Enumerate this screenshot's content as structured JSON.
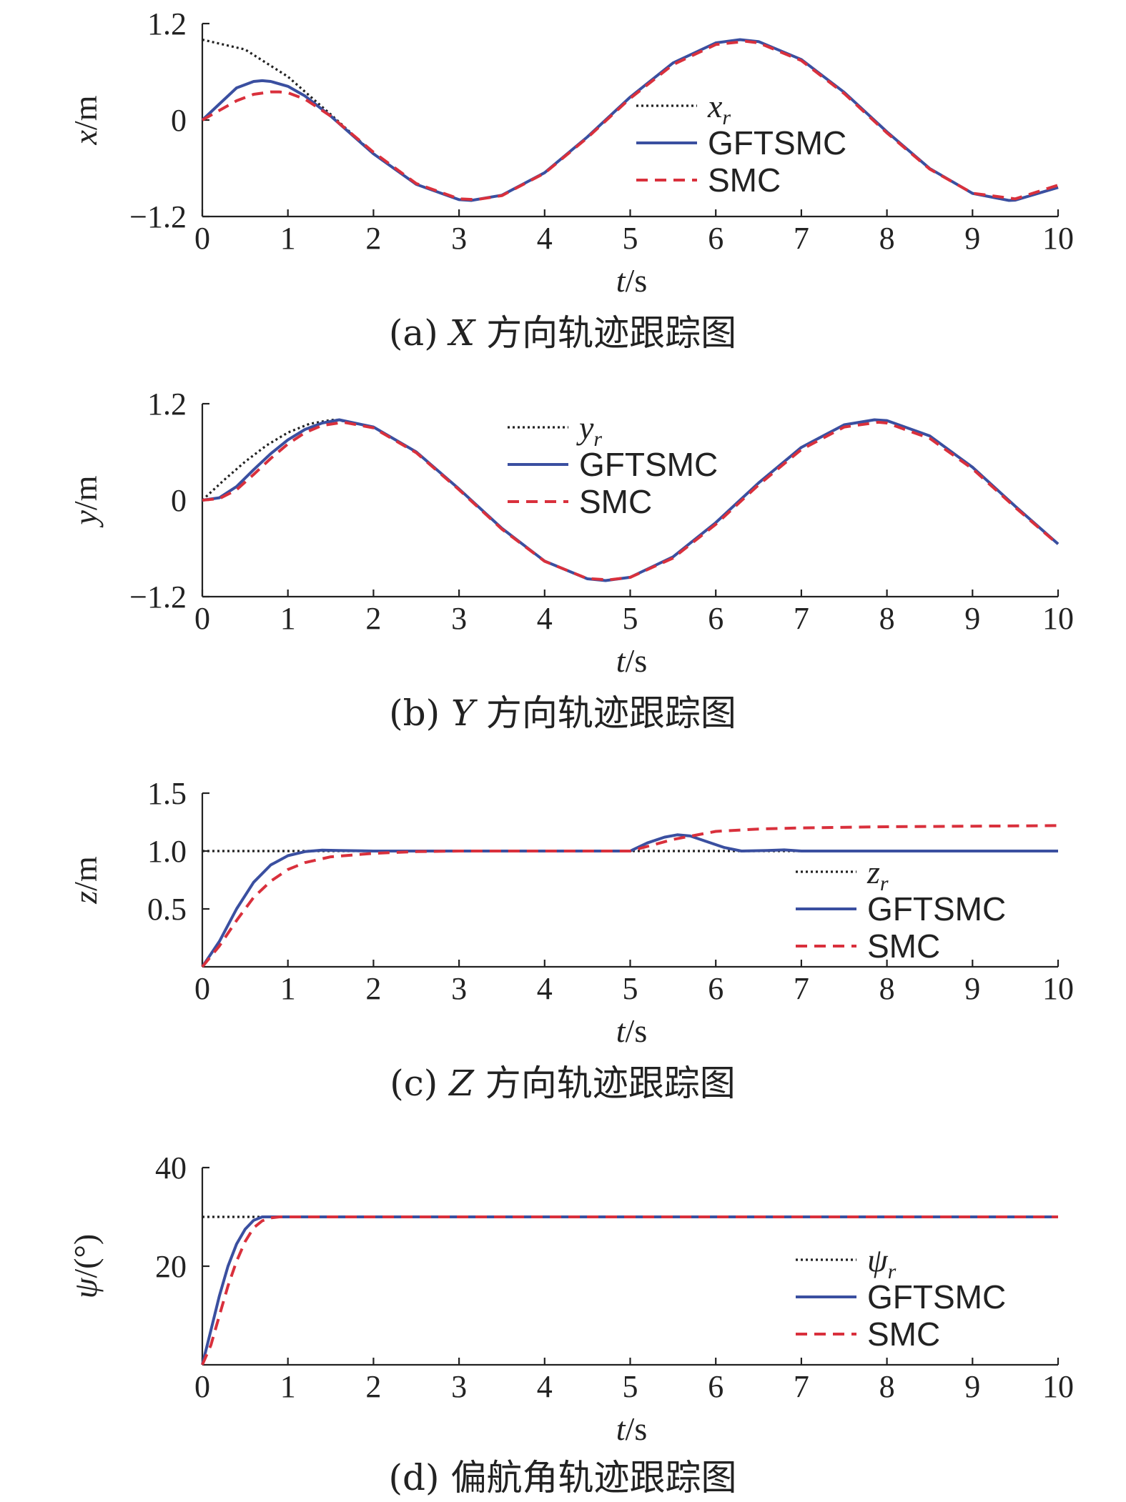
{
  "chart_data": [
    {
      "type": "line",
      "panel": "a",
      "ylabel": {
        "var": "x",
        "unit": "/m"
      },
      "xlabel": {
        "var": "t",
        "unit": "/s"
      },
      "xlim": [
        0,
        10
      ],
      "ylim": [
        -1.2,
        1.2
      ],
      "xticks": [
        "0",
        "1",
        "2",
        "3",
        "4",
        "5",
        "6",
        "7",
        "8",
        "9",
        "10"
      ],
      "yticks": [
        {
          "v": 1.2,
          "t": "1.2"
        },
        {
          "v": 0,
          "t": "0"
        },
        {
          "v": -1.2,
          "t": "−1.2"
        }
      ],
      "legend": [
        {
          "name": "x",
          "sub": "r",
          "italic": true
        },
        {
          "name": "GFTSMC"
        },
        {
          "name": "SMC"
        }
      ],
      "caption": {
        "prefix": "(a) ",
        "var": "X",
        "rest": " 方向轨迹跟踪图"
      },
      "series": [
        {
          "name": "x_r",
          "style": "ref",
          "x": [
            0,
            0.5,
            1,
            1.5,
            2,
            2.5,
            3,
            3.142,
            3.5,
            4,
            4.5,
            5,
            5.5,
            6,
            6.283,
            6.5,
            7,
            7.5,
            8,
            8.5,
            9,
            9.425,
            9.5,
            10
          ],
          "y": [
            1.0,
            0.877,
            0.54,
            0.071,
            -0.416,
            -0.801,
            -0.99,
            -1.0,
            -0.936,
            -0.654,
            -0.211,
            0.284,
            0.709,
            0.96,
            1.0,
            0.977,
            0.754,
            0.347,
            -0.146,
            -0.602,
            -0.911,
            -1.0,
            -0.997,
            -0.839
          ]
        },
        {
          "name": "GFTSMC",
          "style": "gftsmc",
          "x": [
            0,
            0.2,
            0.4,
            0.6,
            0.7,
            0.8,
            1.0,
            1.2,
            1.5,
            2,
            2.5,
            3,
            3.142,
            3.5,
            4,
            4.5,
            5,
            5.5,
            6,
            6.283,
            6.5,
            7,
            7.5,
            8,
            8.5,
            9,
            9.425,
            9.5,
            10
          ],
          "y": [
            0,
            0.2,
            0.4,
            0.48,
            0.49,
            0.48,
            0.42,
            0.3,
            0.05,
            -0.42,
            -0.8,
            -0.99,
            -1.0,
            -0.935,
            -0.655,
            -0.21,
            0.285,
            0.71,
            0.96,
            1.0,
            0.976,
            0.753,
            0.345,
            -0.147,
            -0.603,
            -0.912,
            -1.0,
            -0.996,
            -0.838
          ]
        },
        {
          "name": "SMC",
          "style": "smc",
          "x": [
            0,
            0.2,
            0.4,
            0.6,
            0.8,
            0.9,
            1.0,
            1.2,
            1.5,
            2,
            2.5,
            3,
            3.2,
            3.5,
            4,
            4.5,
            5,
            5.5,
            6,
            6.35,
            6.5,
            7,
            7.5,
            8,
            8.5,
            9,
            9.5,
            10
          ],
          "y": [
            0,
            0.12,
            0.24,
            0.32,
            0.35,
            0.35,
            0.34,
            0.26,
            0.05,
            -0.4,
            -0.79,
            -0.98,
            -0.99,
            -0.94,
            -0.66,
            -0.22,
            0.27,
            0.69,
            0.94,
            0.98,
            0.96,
            0.74,
            0.33,
            -0.16,
            -0.61,
            -0.91,
            -0.98,
            -0.81
          ]
        }
      ]
    },
    {
      "type": "line",
      "panel": "b",
      "ylabel": {
        "var": "y",
        "unit": "/m"
      },
      "xlabel": {
        "var": "t",
        "unit": "/s"
      },
      "xlim": [
        0,
        10
      ],
      "ylim": [
        -1.2,
        1.2
      ],
      "xticks": [
        "0",
        "1",
        "2",
        "3",
        "4",
        "5",
        "6",
        "7",
        "8",
        "9",
        "10"
      ],
      "yticks": [
        {
          "v": 1.2,
          "t": "1.2"
        },
        {
          "v": 0,
          "t": "0"
        },
        {
          "v": -1.2,
          "t": "−1.2"
        }
      ],
      "legend": [
        {
          "name": "y",
          "sub": "r",
          "italic": true
        },
        {
          "name": "GFTSMC"
        },
        {
          "name": "SMC"
        }
      ],
      "caption": {
        "prefix": "(b) ",
        "var": "Y",
        "rest": " 方向轨迹跟踪图"
      },
      "series": [
        {
          "name": "y_r",
          "style": "ref",
          "x": [
            0,
            0.25,
            0.5,
            0.75,
            1,
            1.25,
            1.5,
            1.571,
            2,
            2.5,
            3,
            3.5,
            4,
            4.5,
            4.712,
            5,
            5.5,
            6,
            6.5,
            7,
            7.5,
            7.854,
            8,
            8.5,
            9,
            9.5,
            10
          ],
          "y": [
            0,
            0.247,
            0.479,
            0.682,
            0.841,
            0.949,
            0.997,
            1.0,
            0.909,
            0.598,
            0.141,
            -0.351,
            -0.757,
            -0.978,
            -1.0,
            -0.959,
            -0.706,
            -0.279,
            0.215,
            0.657,
            0.938,
            1.0,
            0.989,
            0.798,
            0.412,
            -0.075,
            -0.544
          ]
        },
        {
          "name": "GFTSMC",
          "style": "gftsmc",
          "x": [
            0,
            0.2,
            0.4,
            0.6,
            0.8,
            1.0,
            1.2,
            1.4,
            1.6,
            2,
            2.5,
            3,
            3.5,
            4,
            4.5,
            4.712,
            5,
            5.5,
            6,
            6.5,
            7,
            7.5,
            7.854,
            8,
            8.5,
            9,
            9.5,
            10
          ],
          "y": [
            0,
            0.03,
            0.17,
            0.38,
            0.58,
            0.75,
            0.88,
            0.96,
            1.0,
            0.91,
            0.6,
            0.14,
            -0.35,
            -0.757,
            -0.978,
            -1.0,
            -0.959,
            -0.705,
            -0.279,
            0.215,
            0.657,
            0.938,
            1.0,
            0.99,
            0.8,
            0.41,
            -0.076,
            -0.545
          ]
        },
        {
          "name": "SMC",
          "style": "smc",
          "x": [
            0,
            0.2,
            0.4,
            0.6,
            0.8,
            1.0,
            1.2,
            1.4,
            1.65,
            2,
            2.5,
            3,
            3.5,
            4,
            4.5,
            4.75,
            5,
            5.5,
            6,
            6.5,
            7,
            7.5,
            7.9,
            8,
            8.5,
            9,
            9.5,
            10
          ],
          "y": [
            0,
            0.02,
            0.13,
            0.32,
            0.52,
            0.7,
            0.84,
            0.93,
            0.97,
            0.9,
            0.59,
            0.13,
            -0.36,
            -0.76,
            -0.975,
            -0.99,
            -0.96,
            -0.72,
            -0.3,
            0.19,
            0.63,
            0.91,
            0.97,
            0.96,
            0.77,
            0.39,
            -0.09,
            -0.55
          ]
        }
      ]
    },
    {
      "type": "line",
      "panel": "c",
      "ylabel": {
        "var": "z",
        "unit": "/m"
      },
      "xlabel": {
        "var": "t",
        "unit": "/s"
      },
      "xlim": [
        0,
        10
      ],
      "ylim": [
        0,
        1.5
      ],
      "xticks": [
        "0",
        "1",
        "2",
        "3",
        "4",
        "5",
        "6",
        "7",
        "8",
        "9",
        "10"
      ],
      "yticks": [
        {
          "v": 1.5,
          "t": "1.5"
        },
        {
          "v": 1.0,
          "t": "1.0"
        },
        {
          "v": 0.5,
          "t": "0.5"
        }
      ],
      "legend": [
        {
          "name": "z",
          "sub": "r",
          "italic": true
        },
        {
          "name": "GFTSMC"
        },
        {
          "name": "SMC"
        }
      ],
      "caption": {
        "prefix": "(c) ",
        "var": "Z",
        "rest": " 方向轨迹跟踪图"
      },
      "series": [
        {
          "name": "z_r",
          "style": "ref",
          "x": [
            0,
            10
          ],
          "y": [
            1.0,
            1.0
          ]
        },
        {
          "name": "GFTSMC",
          "style": "gftsmc",
          "x": [
            0,
            0.2,
            0.4,
            0.6,
            0.8,
            1.0,
            1.2,
            1.4,
            1.6,
            2,
            3,
            4,
            5,
            5.2,
            5.4,
            5.55,
            5.7,
            5.9,
            6.1,
            6.3,
            6.6,
            6.8,
            7,
            7.5,
            8,
            10
          ],
          "y": [
            0,
            0.22,
            0.5,
            0.73,
            0.88,
            0.96,
            0.995,
            1.008,
            1.005,
            1.0,
            1.0,
            1.0,
            1.0,
            1.07,
            1.12,
            1.14,
            1.13,
            1.08,
            1.03,
            1.0,
            1.005,
            1.01,
            1.0,
            1.0,
            1.0,
            1.0
          ]
        },
        {
          "name": "SMC",
          "style": "smc",
          "x": [
            0,
            0.2,
            0.4,
            0.6,
            0.8,
            1.0,
            1.2,
            1.5,
            2,
            2.5,
            3,
            4,
            5,
            5.5,
            6,
            6.5,
            7,
            8,
            9,
            10
          ],
          "y": [
            0,
            0.18,
            0.4,
            0.6,
            0.74,
            0.84,
            0.9,
            0.95,
            0.98,
            0.995,
            1.0,
            1.0,
            1.0,
            1.1,
            1.17,
            1.19,
            1.2,
            1.21,
            1.215,
            1.22
          ]
        }
      ]
    },
    {
      "type": "line",
      "panel": "d",
      "ylabel": {
        "var": "ψ",
        "unit": "/(°)"
      },
      "xlabel": {
        "var": "t",
        "unit": "/s"
      },
      "xlim": [
        0,
        10
      ],
      "ylim": [
        0,
        40
      ],
      "xticks": [
        "0",
        "1",
        "2",
        "3",
        "4",
        "5",
        "6",
        "7",
        "8",
        "9",
        "10"
      ],
      "yticks": [
        {
          "v": 40,
          "t": "40"
        },
        {
          "v": 20,
          "t": "20"
        }
      ],
      "legend": [
        {
          "name": "ψ",
          "sub": "r",
          "italic": true
        },
        {
          "name": "GFTSMC"
        },
        {
          "name": "SMC"
        }
      ],
      "caption": {
        "prefix": "(d) ",
        "var": "",
        "rest": "偏航角轨迹跟踪图"
      },
      "series": [
        {
          "name": "psi_r",
          "style": "ref",
          "x": [
            0,
            10
          ],
          "y": [
            30,
            30
          ]
        },
        {
          "name": "GFTSMC",
          "style": "gftsmc",
          "x": [
            0,
            0.1,
            0.2,
            0.3,
            0.4,
            0.5,
            0.6,
            0.7,
            0.8,
            1.0,
            10
          ],
          "y": [
            0,
            7,
            14,
            20,
            24.5,
            27.5,
            29.3,
            30,
            30,
            30,
            30
          ]
        },
        {
          "name": "SMC",
          "style": "smc",
          "x": [
            0,
            0.1,
            0.2,
            0.3,
            0.4,
            0.5,
            0.6,
            0.7,
            0.8,
            0.9,
            1.0,
            10
          ],
          "y": [
            0,
            4,
            10,
            16,
            21,
            25,
            27.8,
            29.2,
            29.8,
            30,
            30,
            30
          ]
        }
      ]
    }
  ],
  "styles": {
    "ref": {
      "color": "#222222",
      "dash": "3,4",
      "width": 3.2
    },
    "gftsmc": {
      "color": "#3a4fa0",
      "dash": "",
      "width": 4
    },
    "smc": {
      "color": "#d9303c",
      "dash": "16,10",
      "width": 4
    }
  }
}
